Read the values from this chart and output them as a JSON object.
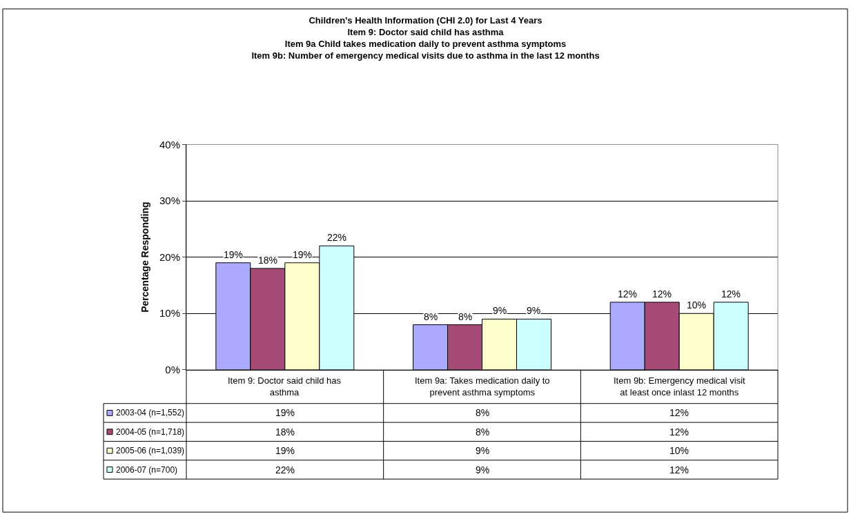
{
  "chart_data": {
    "type": "bar",
    "title": "Children's Health Information (CHI 2.0) for Last 4 Years\nItem 9: Doctor said child has asthma\nItem 9a Child takes medication daily to prevent asthma symptoms\nItem 9b: Number of emergency medical visits due to asthma in the last 12 months",
    "ylabel": "Percentage Responding",
    "categories": [
      "Item 9: Doctor said child has asthma",
      "Item 9a: Takes medication daily to prevent asthma symptoms",
      "Item 9b: Emergency medical visit at least once inlast 12 months"
    ],
    "series": [
      {
        "name": "2003-04 (n=1,552)",
        "color": "#aaaaff",
        "values": [
          19,
          8,
          12
        ],
        "value_labels": [
          "19%",
          "8%",
          "12%"
        ]
      },
      {
        "name": "2004-05 (n=1,718)",
        "color": "#a64a77",
        "values": [
          18,
          8,
          12
        ],
        "value_labels": [
          "18%",
          "8%",
          "12%"
        ]
      },
      {
        "name": "2005-06 (n=1,039)",
        "color": "#ffffcc",
        "values": [
          19,
          9,
          10
        ],
        "value_labels": [
          "19%",
          "9%",
          "10%"
        ]
      },
      {
        "name": "2006-07 (n=700)",
        "color": "#ccffff",
        "values": [
          22,
          9,
          12
        ],
        "value_labels": [
          "22%",
          "9%",
          "12%"
        ]
      }
    ],
    "ylim": [
      0,
      40
    ],
    "yticks": [
      {
        "value": 0,
        "label": "0%"
      },
      {
        "value": 10,
        "label": "10%"
      },
      {
        "value": 20,
        "label": "20%"
      },
      {
        "value": 30,
        "label": "30%"
      },
      {
        "value": 40,
        "label": "40%"
      }
    ],
    "grid": "y",
    "legend": "bottom"
  }
}
